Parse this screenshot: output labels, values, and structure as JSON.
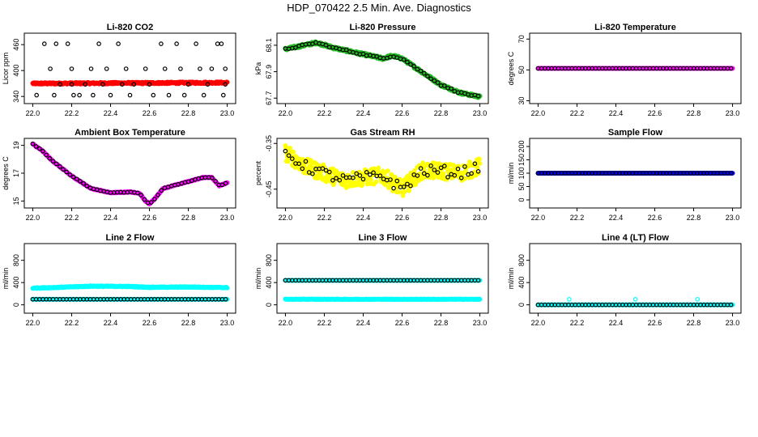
{
  "page": {
    "title": "HDP_070422  2.5 Min. Ave. Diagnostics"
  },
  "colors": {
    "black": "#000000",
    "red": "#ff0000",
    "green": "#22bb22",
    "magenta": "#ff00ff",
    "yellow": "#ffff00",
    "blue": "#0000ff",
    "cyan": "#00ffff"
  },
  "chart_data": [
    {
      "type": "scatter",
      "title": "Li-820 CO2",
      "xlabel": "",
      "ylabel": "Licor ppm",
      "xlim": [
        22.0,
        23.0
      ],
      "ylim": [
        330,
        480
      ],
      "xticks": [
        "22.0",
        "22.2",
        "22.4",
        "22.6",
        "22.8",
        "23.0"
      ],
      "yticks": [
        "340",
        "400",
        "460"
      ],
      "series": [
        {
          "color": "red",
          "style": "dense",
          "desc": "continuous readings",
          "x_range": [
            22.0,
            23.0
          ],
          "y_start": 370,
          "y_end": 372,
          "noise": 2
        },
        {
          "color": "black",
          "style": "ring",
          "desc": "2.5 min averages",
          "points": [
            [
              22.02,
              343
            ],
            [
              22.06,
              462
            ],
            [
              22.09,
              404
            ],
            [
              22.11,
              343
            ],
            [
              22.12,
              462
            ],
            [
              22.14,
              368
            ],
            [
              22.18,
              462
            ],
            [
              22.2,
              404
            ],
            [
              22.2,
              368
            ],
            [
              22.21,
              343
            ],
            [
              22.24,
              343
            ],
            [
              22.27,
              368
            ],
            [
              22.3,
              404
            ],
            [
              22.31,
              343
            ],
            [
              22.34,
              462
            ],
            [
              22.36,
              368
            ],
            [
              22.38,
              404
            ],
            [
              22.4,
              343
            ],
            [
              22.44,
              462
            ],
            [
              22.46,
              368
            ],
            [
              22.48,
              404
            ],
            [
              22.5,
              343
            ],
            [
              22.52,
              368
            ],
            [
              22.58,
              404
            ],
            [
              22.6,
              368
            ],
            [
              22.62,
              343
            ],
            [
              22.66,
              462
            ],
            [
              22.68,
              404
            ],
            [
              22.7,
              343
            ],
            [
              22.74,
              462
            ],
            [
              22.76,
              404
            ],
            [
              22.78,
              343
            ],
            [
              22.8,
              368
            ],
            [
              22.84,
              462
            ],
            [
              22.86,
              404
            ],
            [
              22.88,
              343
            ],
            [
              22.9,
              368
            ],
            [
              22.92,
              404
            ],
            [
              22.95,
              462
            ],
            [
              22.98,
              343
            ],
            [
              22.99,
              368
            ],
            [
              22.99,
              404
            ],
            [
              22.97,
              462
            ]
          ]
        }
      ]
    },
    {
      "type": "scatter",
      "title": "Li-820 Pressure",
      "xlabel": "",
      "ylabel": "kPa",
      "xlim": [
        22.0,
        23.0
      ],
      "ylim": [
        67.68,
        68.17
      ],
      "xticks": [
        "22.0",
        "22.2",
        "22.4",
        "22.6",
        "22.8",
        "23.0"
      ],
      "yticks": [
        "67.7",
        "67.9",
        "68.1"
      ],
      "series": [
        {
          "color": "green",
          "style": "dense",
          "desc": "continuous readings",
          "knots": [
            [
              22.0,
              68.07
            ],
            [
              22.16,
              68.12
            ],
            [
              22.25,
              68.08
            ],
            [
              22.5,
              68.0
            ],
            [
              22.55,
              68.02
            ],
            [
              22.6,
              68.0
            ],
            [
              22.8,
              67.8
            ],
            [
              22.9,
              67.74
            ],
            [
              23.0,
              67.71
            ]
          ],
          "noise": 0.01
        },
        {
          "color": "black",
          "style": "ring",
          "desc": "2.5 min averages",
          "knots": [
            [
              22.0,
              68.07
            ],
            [
              22.16,
              68.12
            ],
            [
              22.25,
              68.08
            ],
            [
              22.5,
              68.0
            ],
            [
              22.55,
              68.02
            ],
            [
              22.6,
              68.0
            ],
            [
              22.8,
              67.8
            ],
            [
              22.9,
              67.74
            ],
            [
              23.0,
              67.71
            ]
          ],
          "step": 0.0174,
          "noise": 0.006
        }
      ]
    },
    {
      "type": "scatter",
      "title": "Li-820 Temperature",
      "xlabel": "",
      "ylabel": "degrees C",
      "xlim": [
        22.0,
        23.0
      ],
      "ylim": [
        30,
        72
      ],
      "xticks": [
        "22.0",
        "22.2",
        "22.4",
        "22.6",
        "22.8",
        "23.0"
      ],
      "yticks": [
        "30",
        "50",
        "70"
      ],
      "series": [
        {
          "color": "magenta",
          "style": "dense",
          "desc": "continuous readings",
          "x_range": [
            22.0,
            23.0
          ],
          "y_start": 51,
          "y_end": 51,
          "noise": 0
        },
        {
          "color": "black",
          "style": "ring",
          "desc": "2.5 min averages",
          "knots": [
            [
              22.0,
              51
            ],
            [
              23.0,
              51
            ]
          ],
          "step": 0.0174,
          "noise": 0
        }
      ]
    },
    {
      "type": "scatter",
      "title": "Ambient Box Temperature",
      "xlabel": "",
      "ylabel": "degrees C",
      "xlim": [
        22.0,
        23.0
      ],
      "ylim": [
        14.7,
        19.3
      ],
      "xticks": [
        "22.0",
        "22.2",
        "22.4",
        "22.6",
        "22.8",
        "23.0"
      ],
      "yticks": [
        "15",
        "17",
        "19"
      ],
      "series": [
        {
          "color": "magenta",
          "style": "dense",
          "desc": "continuous readings",
          "knots": [
            [
              22.0,
              19.1
            ],
            [
              22.05,
              18.6
            ],
            [
              22.1,
              17.9
            ],
            [
              22.2,
              16.8
            ],
            [
              22.3,
              15.9
            ],
            [
              22.4,
              15.6
            ],
            [
              22.5,
              15.65
            ],
            [
              22.55,
              15.55
            ],
            [
              22.58,
              15.0
            ],
            [
              22.6,
              14.8
            ],
            [
              22.63,
              15.2
            ],
            [
              22.67,
              15.9
            ],
            [
              22.8,
              16.4
            ],
            [
              22.88,
              16.7
            ],
            [
              22.92,
              16.7
            ],
            [
              22.96,
              16.1
            ],
            [
              23.0,
              16.3
            ]
          ],
          "noise": 0.03
        },
        {
          "color": "black",
          "style": "ring",
          "desc": "2.5 min averages",
          "knots": [
            [
              22.0,
              19.1
            ],
            [
              22.05,
              18.6
            ],
            [
              22.1,
              17.9
            ],
            [
              22.2,
              16.8
            ],
            [
              22.3,
              15.9
            ],
            [
              22.4,
              15.6
            ],
            [
              22.5,
              15.65
            ],
            [
              22.55,
              15.55
            ],
            [
              22.58,
              15.0
            ],
            [
              22.6,
              14.8
            ],
            [
              22.63,
              15.2
            ],
            [
              22.67,
              15.9
            ],
            [
              22.8,
              16.4
            ],
            [
              22.88,
              16.7
            ],
            [
              22.92,
              16.7
            ],
            [
              22.96,
              16.1
            ],
            [
              23.0,
              16.3
            ]
          ],
          "step": 0.0174,
          "noise": 0.02
        }
      ]
    },
    {
      "type": "scatter",
      "title": "Gas Stream RH",
      "xlabel": "",
      "ylabel": "percent",
      "xlim": [
        22.0,
        23.0
      ],
      "ylim": [
        -0.485,
        -0.345
      ],
      "xticks": [
        "22.0",
        "22.2",
        "22.4",
        "22.6",
        "22.8",
        "23.0"
      ],
      "yticks": [
        "-0.45",
        "-0.35"
      ],
      "series": [
        {
          "color": "yellow",
          "style": "dense",
          "desc": "continuous readings",
          "knots": [
            [
              22.0,
              -0.37
            ],
            [
              22.1,
              -0.4
            ],
            [
              22.3,
              -0.43
            ],
            [
              22.5,
              -0.42
            ],
            [
              22.6,
              -0.45
            ],
            [
              22.7,
              -0.41
            ],
            [
              22.8,
              -0.41
            ],
            [
              22.9,
              -0.415
            ],
            [
              23.0,
              -0.4
            ]
          ],
          "noise": 0.018
        },
        {
          "color": "black",
          "style": "ring",
          "desc": "2.5 min averages",
          "knots": [
            [
              22.0,
              -0.37
            ],
            [
              22.1,
              -0.4
            ],
            [
              22.3,
              -0.43
            ],
            [
              22.5,
              -0.42
            ],
            [
              22.6,
              -0.45
            ],
            [
              22.7,
              -0.41
            ],
            [
              22.8,
              -0.41
            ],
            [
              22.9,
              -0.415
            ],
            [
              23.0,
              -0.4
            ]
          ],
          "step": 0.0174,
          "noise": 0.012
        }
      ]
    },
    {
      "type": "scatter",
      "title": "Sample Flow",
      "xlabel": "",
      "ylabel": "ml/min",
      "xlim": [
        22.0,
        23.0
      ],
      "ylim": [
        -20,
        220
      ],
      "xticks": [
        "22.0",
        "22.2",
        "22.4",
        "22.6",
        "22.8",
        "23.0"
      ],
      "yticks": [
        "0",
        "50",
        "100",
        "150",
        "200"
      ],
      "series": [
        {
          "color": "blue",
          "style": "dense",
          "desc": "continuous readings",
          "x_range": [
            22.0,
            23.0
          ],
          "y_start": 100,
          "y_end": 100,
          "noise": 0
        },
        {
          "color": "black",
          "style": "ring",
          "desc": "2.5 min averages",
          "knots": [
            [
              22.0,
              100
            ],
            [
              23.0,
              100
            ]
          ],
          "step": 0.0174,
          "noise": 0
        }
      ]
    },
    {
      "type": "scatter",
      "title": "Line 2 Flow",
      "xlabel": "",
      "ylabel": "ml/min",
      "xlim": [
        22.0,
        23.0
      ],
      "ylim": [
        -100,
        1050
      ],
      "xticks": [
        "22.0",
        "22.2",
        "22.4",
        "22.6",
        "22.8",
        "23.0"
      ],
      "yticks": [
        "0",
        "400",
        "800"
      ],
      "series": [
        {
          "color": "cyan",
          "style": "dense",
          "desc": "continuous readings",
          "knots": [
            [
              22.0,
              300
            ],
            [
              22.1,
              310
            ],
            [
              22.3,
              335
            ],
            [
              22.5,
              330
            ],
            [
              22.6,
              315
            ],
            [
              22.8,
              320
            ],
            [
              23.0,
              310
            ]
          ],
          "noise": 8
        },
        {
          "color": "cyan",
          "style": "dense",
          "desc": "continuous readings (low)",
          "x_range": [
            22.0,
            23.0
          ],
          "y_start": 100,
          "y_end": 100,
          "noise": 0
        },
        {
          "color": "black",
          "style": "ring",
          "desc": "2.5 min averages",
          "knots": [
            [
              22.0,
              100
            ],
            [
              23.0,
              100
            ]
          ],
          "step": 0.0174,
          "noise": 0
        }
      ]
    },
    {
      "type": "scatter",
      "title": "Line 3 Flow",
      "xlabel": "",
      "ylabel": "ml/min",
      "xlim": [
        22.0,
        23.0
      ],
      "ylim": [
        -100,
        1050
      ],
      "xticks": [
        "22.0",
        "22.2",
        "22.4",
        "22.6",
        "22.8",
        "23.0"
      ],
      "yticks": [
        "0",
        "400",
        "800"
      ],
      "series": [
        {
          "color": "cyan",
          "style": "dense",
          "desc": "continuous readings",
          "x_range": [
            22.0,
            23.0
          ],
          "y_start": 440,
          "y_end": 440,
          "noise": 0
        },
        {
          "color": "cyan",
          "style": "dense",
          "desc": "continuous readings (low)",
          "x_range": [
            22.0,
            23.0
          ],
          "y_start": 100,
          "y_end": 100,
          "noise": 5
        },
        {
          "color": "black",
          "style": "ring",
          "desc": "2.5 min averages",
          "knots": [
            [
              22.0,
              440
            ],
            [
              23.0,
              440
            ]
          ],
          "step": 0.0174,
          "noise": 0
        }
      ]
    },
    {
      "type": "scatter",
      "title": "Line 4 (LT) Flow",
      "xlabel": "",
      "ylabel": "ml/min",
      "xlim": [
        22.0,
        23.0
      ],
      "ylim": [
        -100,
        1050
      ],
      "xticks": [
        "22.0",
        "22.2",
        "22.4",
        "22.6",
        "22.8",
        "23.0"
      ],
      "yticks": [
        "0",
        "400",
        "800"
      ],
      "series": [
        {
          "color": "cyan",
          "style": "dense",
          "desc": "continuous readings",
          "x_range": [
            22.0,
            23.0
          ],
          "y_start": 0,
          "y_end": 0,
          "noise": 0
        },
        {
          "color": "cyan",
          "style": "ring",
          "desc": "flow spikes",
          "points": [
            [
              22.0,
              0
            ],
            [
              22.16,
              100
            ],
            [
              22.5,
              100
            ],
            [
              22.82,
              100
            ]
          ]
        },
        {
          "color": "black",
          "style": "ring",
          "desc": "2.5 min averages",
          "knots": [
            [
              22.0,
              0
            ],
            [
              23.0,
              0
            ]
          ],
          "step": 0.0174,
          "noise": 0
        }
      ]
    }
  ]
}
